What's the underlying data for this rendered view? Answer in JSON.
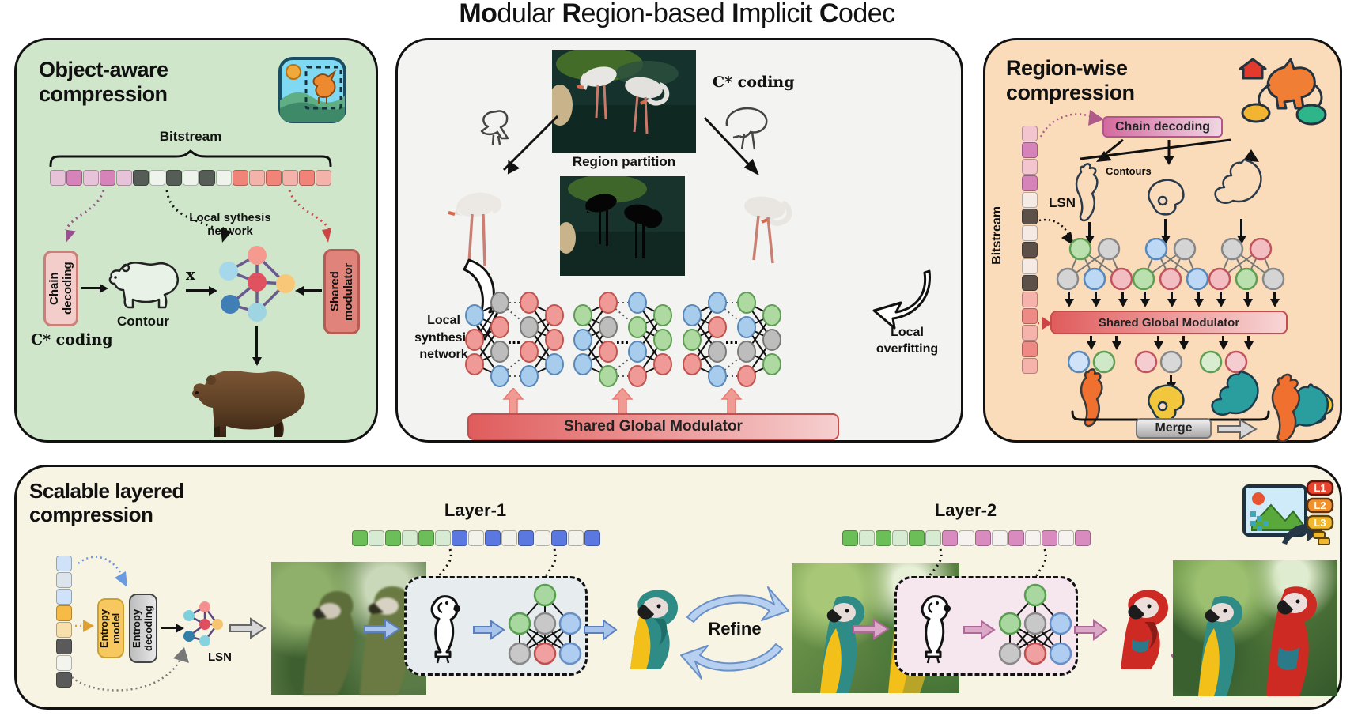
{
  "title": {
    "b1": "Mo",
    "r1": "dular ",
    "b2": "R",
    "r2": "egion-based ",
    "b3": "I",
    "r3": "mplicit ",
    "b4": "C",
    "r4": "odec"
  },
  "colors": {
    "panel_green": "#cfe6cb",
    "panel_gray": "#f3f3f1",
    "panel_peach": "#fbdcba",
    "panel_cream": "#f8f4e3",
    "modulator_red": "#e06060",
    "chain_pink": "#ce6ba4",
    "layer1_blue": "#5a78e0",
    "layer2_pink": "#d98bc0",
    "merge_gray": "#bdbdbd"
  },
  "object_aware": {
    "title_line1": "Object-aware",
    "title_line2": "compression",
    "bitstream_label": "Bitstream",
    "bitstream_squares": [
      "#e7c3d9",
      "#d583b8",
      "#e7c3d9",
      "#d583b8",
      "#e7c3d9",
      "#565d56",
      "#eef4ec",
      "#565d56",
      "#eef4ec",
      "#565d56",
      "#eef4ec",
      "#f08478",
      "#f3b3ab",
      "#f08478",
      "#f3b3ab",
      "#f08478",
      "#f3b3ab"
    ],
    "local_synthesis_line1": "Local sythesis",
    "local_synthesis_line2": "network",
    "chain_decoding": "Chain decoding",
    "contour_label": "Contour",
    "x_label": "x",
    "shared_modulator": "Shared modulator",
    "c_coding": "C* coding"
  },
  "region_partition": {
    "c_coding": "C* coding",
    "region_partition_label": "Region partition",
    "local_synthesis_line1": "Local",
    "local_synthesis_line2": "synthesis",
    "local_synthesis_line3": "network",
    "local_overfitting_line1": "Local",
    "local_overfitting_line2": "overfitting",
    "modulator_label": "Shared Global Modulator",
    "dots": "..."
  },
  "region_wise": {
    "title_line1": "Region-wise",
    "title_line2": "compression",
    "chain_decoding": "Chain decoding",
    "contours_label": "Contours",
    "lsn_label": "LSN",
    "bitstream_label": "Bitstream",
    "bitstream_squares": [
      "#f3c5ce",
      "#d583b8",
      "#f3c5ce",
      "#d583b8",
      "#f5ebe4",
      "#5d5048",
      "#f5ebe4",
      "#5d5048",
      "#f5ebe4",
      "#5d5048",
      "#f5b3ac",
      "#ee8a85",
      "#f5b3ac",
      "#ee8a85",
      "#f5b3ac"
    ],
    "modulator_label": "Shared Global Modulator",
    "merge_label": "Merge"
  },
  "scalable": {
    "title_line1": "Scalable layered",
    "title_line2": "compression",
    "bitstream_squares": [
      "#cfe2f7",
      "#dce4ec",
      "#cfe2f7",
      "#f6ba45",
      "#f8e0ac",
      "#5a5a5a",
      "#f4f4ee",
      "#5a5a5a"
    ],
    "entropy_model": "Entropy model",
    "entropy_decoding": "Entropy decoding",
    "lsn_label": "LSN",
    "layer1_label": "Layer-1",
    "layer1_squares": [
      "#6cbf58",
      "#d7ebd2",
      "#6cbf58",
      "#d7ebd2",
      "#6cbf58",
      "#d7ebd2",
      "#5a78e0",
      "#f2f2ea",
      "#5a78e0",
      "#f2f2ea",
      "#5a78e0",
      "#f2f2ea",
      "#5a78e0",
      "#f2f2ea",
      "#5a78e0"
    ],
    "refine1_label": "Refine",
    "layer2_label": "Layer-2",
    "layer2_squares": [
      "#6cbf58",
      "#d7ebd2",
      "#6cbf58",
      "#d7ebd2",
      "#6cbf58",
      "#d7ebd2",
      "#d98bc0",
      "#f6f2f0",
      "#d98bc0",
      "#f6f2f0",
      "#d98bc0",
      "#f6f2f0",
      "#d98bc0",
      "#f6f2f0",
      "#d98bc0"
    ],
    "refine2_label": "Refine",
    "icon_badges": [
      "L1",
      "L2",
      "L3"
    ]
  }
}
